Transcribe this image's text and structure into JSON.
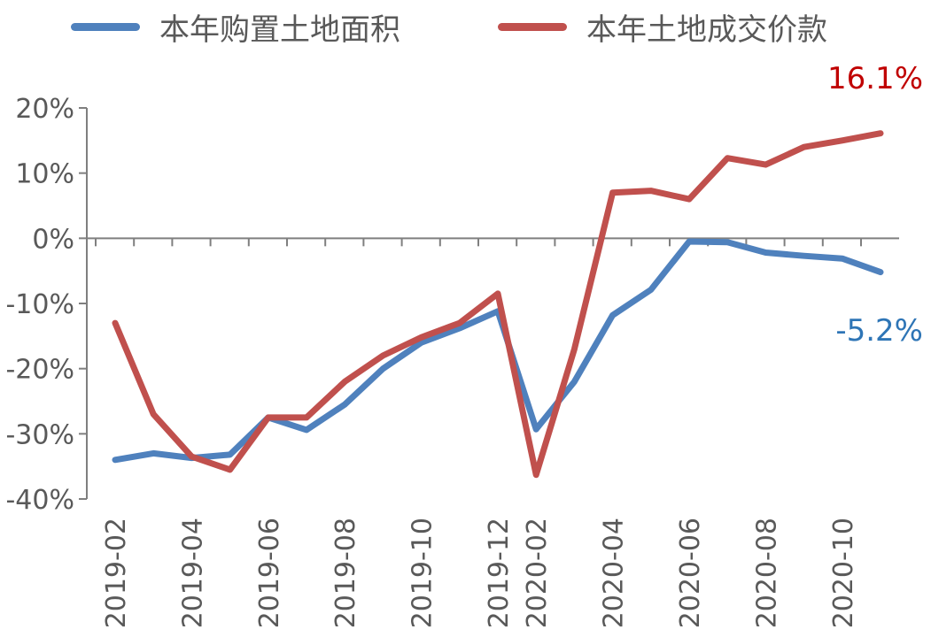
{
  "chart_data": {
    "type": "line",
    "x": [
      "2019-02",
      "2019-03",
      "2019-04",
      "2019-05",
      "2019-06",
      "2019-07",
      "2019-08",
      "2019-09",
      "2019-10",
      "2019-11",
      "2019-12",
      "2020-02",
      "2020-03",
      "2020-04",
      "2020-05",
      "2020-06",
      "2020-07",
      "2020-08",
      "2020-09",
      "2020-10",
      "2020-11"
    ],
    "x_tick_labels": [
      "2019-02",
      "2019-04",
      "2019-06",
      "2019-08",
      "2019-10",
      "2019-12",
      "2020-02",
      "2020-04",
      "2020-06",
      "2020-08",
      "2020-10"
    ],
    "y_ticks": [
      20,
      10,
      0,
      -10,
      -20,
      -30,
      -40
    ],
    "y_tick_labels": [
      "20%",
      "10%",
      "0%",
      "-10%",
      "-20%",
      "-30%",
      "-40%"
    ],
    "ylim": [
      -40,
      20
    ],
    "grid": false,
    "legend_position": "top",
    "series": [
      {
        "name": "本年购置土地面积",
        "color": "#4f81bd",
        "values": [
          -34.0,
          -33.0,
          -33.7,
          -33.2,
          -27.5,
          -29.4,
          -25.5,
          -20.0,
          -16.0,
          -13.8,
          -11.2,
          -29.3,
          -22.0,
          -11.8,
          -7.9,
          -0.5,
          -0.6,
          -2.2,
          -2.7,
          -3.1,
          -5.2
        ],
        "end_label": "-5.2%",
        "end_label_color": "#2e75b6"
      },
      {
        "name": "本年土地成交价款",
        "color": "#c0504d",
        "values": [
          -13.0,
          -27.0,
          -33.5,
          -35.5,
          -27.5,
          -27.5,
          -22.0,
          -18.0,
          -15.2,
          -13.0,
          -8.5,
          -36.3,
          -17.0,
          7.0,
          7.3,
          6.0,
          12.3,
          11.3,
          14.0,
          15.0,
          16.1
        ],
        "end_label": "16.1%",
        "end_label_color": "#c00000"
      }
    ]
  }
}
